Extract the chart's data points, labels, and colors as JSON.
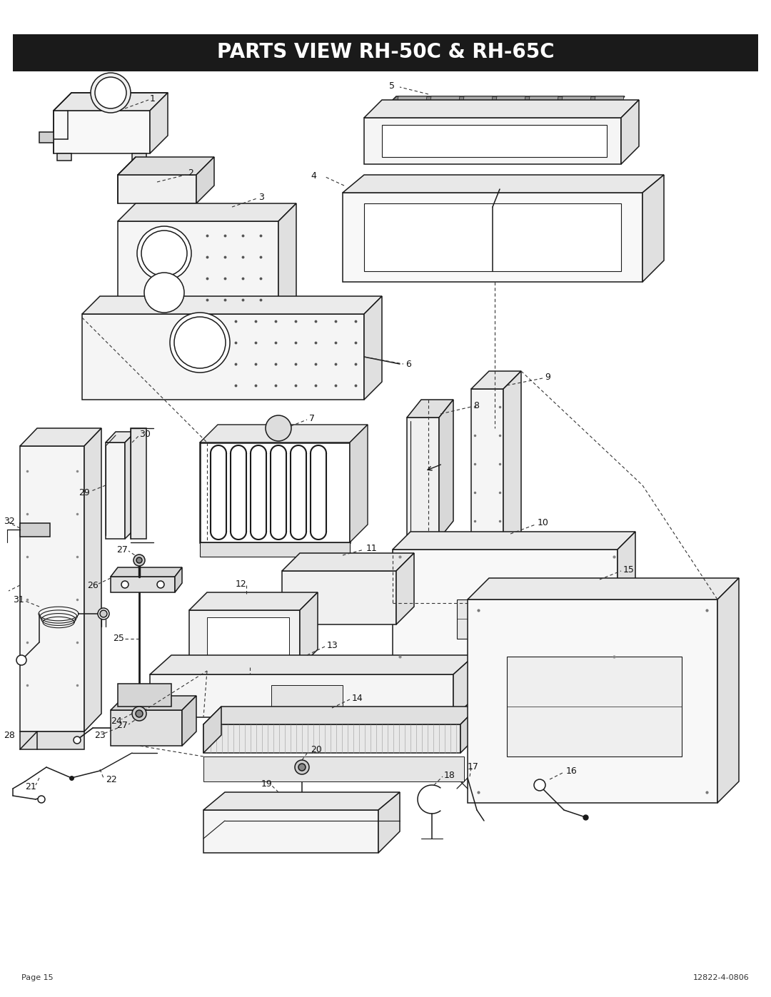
{
  "title": "PARTS VIEW RH-50C & RH-65C",
  "title_bg": "#1a1a1a",
  "title_fg": "#ffffff",
  "page_label": "Page 15",
  "doc_number": "12822-4-0806",
  "bg_color": "#ffffff",
  "lc": "#1a1a1a",
  "lw": 1.1
}
